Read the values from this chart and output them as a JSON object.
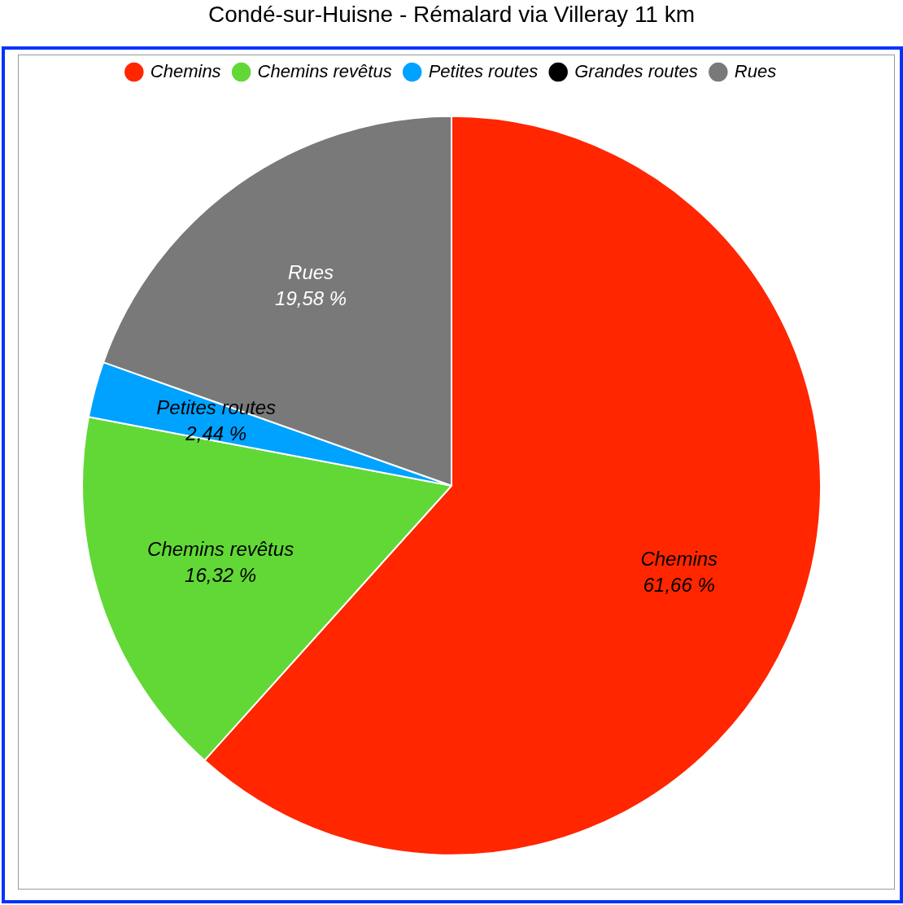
{
  "chart_data": {
    "type": "pie",
    "title": "Condé-sur-Huisne - Rémalard via Villeray 11 km",
    "categories": [
      "Chemins",
      "Chemins revêtus",
      "Petites routes",
      "Grandes routes",
      "Rues"
    ],
    "values": [
      61.66,
      16.32,
      2.44,
      0,
      19.58
    ],
    "colors": [
      "#ff2600",
      "#61d836",
      "#00a2ff",
      "#000000",
      "#797979"
    ],
    "value_labels": [
      "61,66 %",
      "16,32 %",
      "2,44 %",
      null,
      "19,58 %"
    ],
    "legend": "top"
  }
}
